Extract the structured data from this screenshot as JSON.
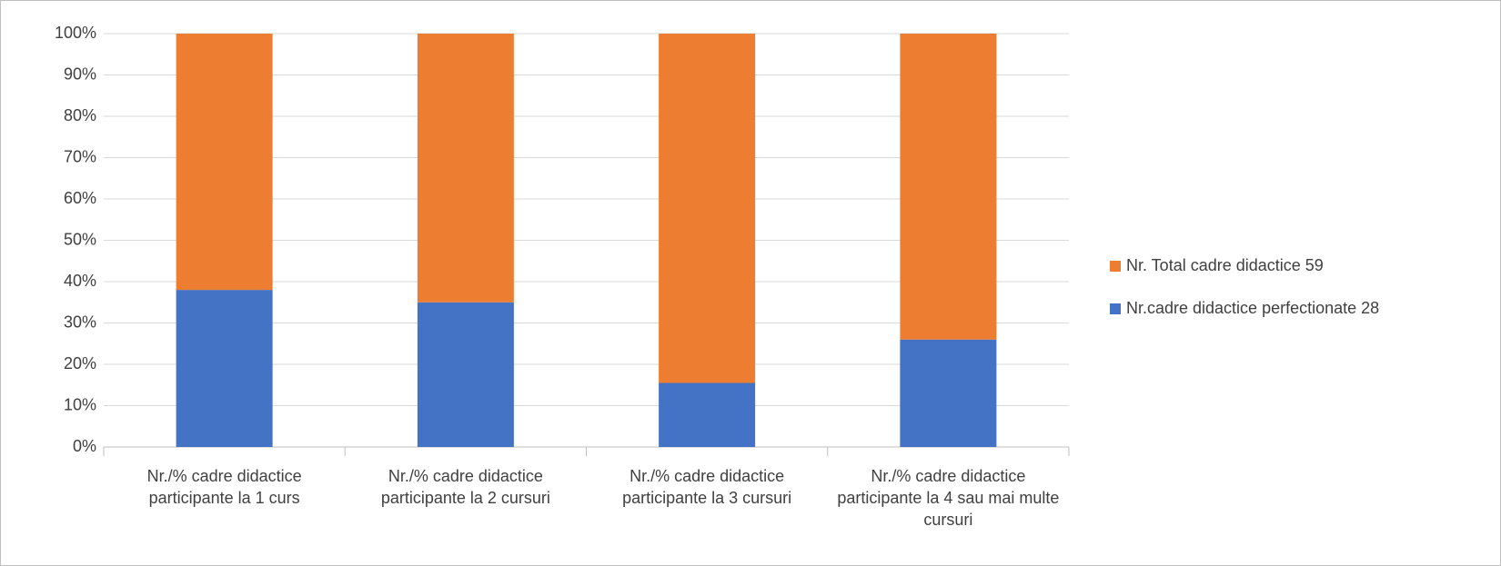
{
  "chart_data": {
    "type": "stacked_bar_100",
    "categories": [
      "Nr./% cadre didactice participante la 1 curs",
      "Nr./% cadre didactice participante la 2 cursuri",
      "Nr./% cadre didactice participante la 3 cursuri",
      "Nr./% cadre didactice participante la 4 sau mai multe cursuri"
    ],
    "series": [
      {
        "name": "Nr.cadre didactice perfectionate 28",
        "color": "#4472c4",
        "values": [
          38,
          35,
          15.5,
          26
        ]
      },
      {
        "name": "Nr. Total cadre didactice 59",
        "color": "#ed7d31",
        "values": [
          62,
          65,
          84.5,
          74
        ]
      }
    ],
    "ylim": [
      0,
      100
    ],
    "yticks": [
      {
        "value": 0,
        "label": "0%"
      },
      {
        "value": 10,
        "label": "10%"
      },
      {
        "value": 20,
        "label": "20%"
      },
      {
        "value": 30,
        "label": "30%"
      },
      {
        "value": 40,
        "label": "40%"
      },
      {
        "value": 50,
        "label": "50%"
      },
      {
        "value": 60,
        "label": "60%"
      },
      {
        "value": 70,
        "label": "70%"
      },
      {
        "value": 80,
        "label": "80%"
      },
      {
        "value": 90,
        "label": "90%"
      },
      {
        "value": 100,
        "label": "100%"
      }
    ],
    "grid": true,
    "legend": "right"
  }
}
